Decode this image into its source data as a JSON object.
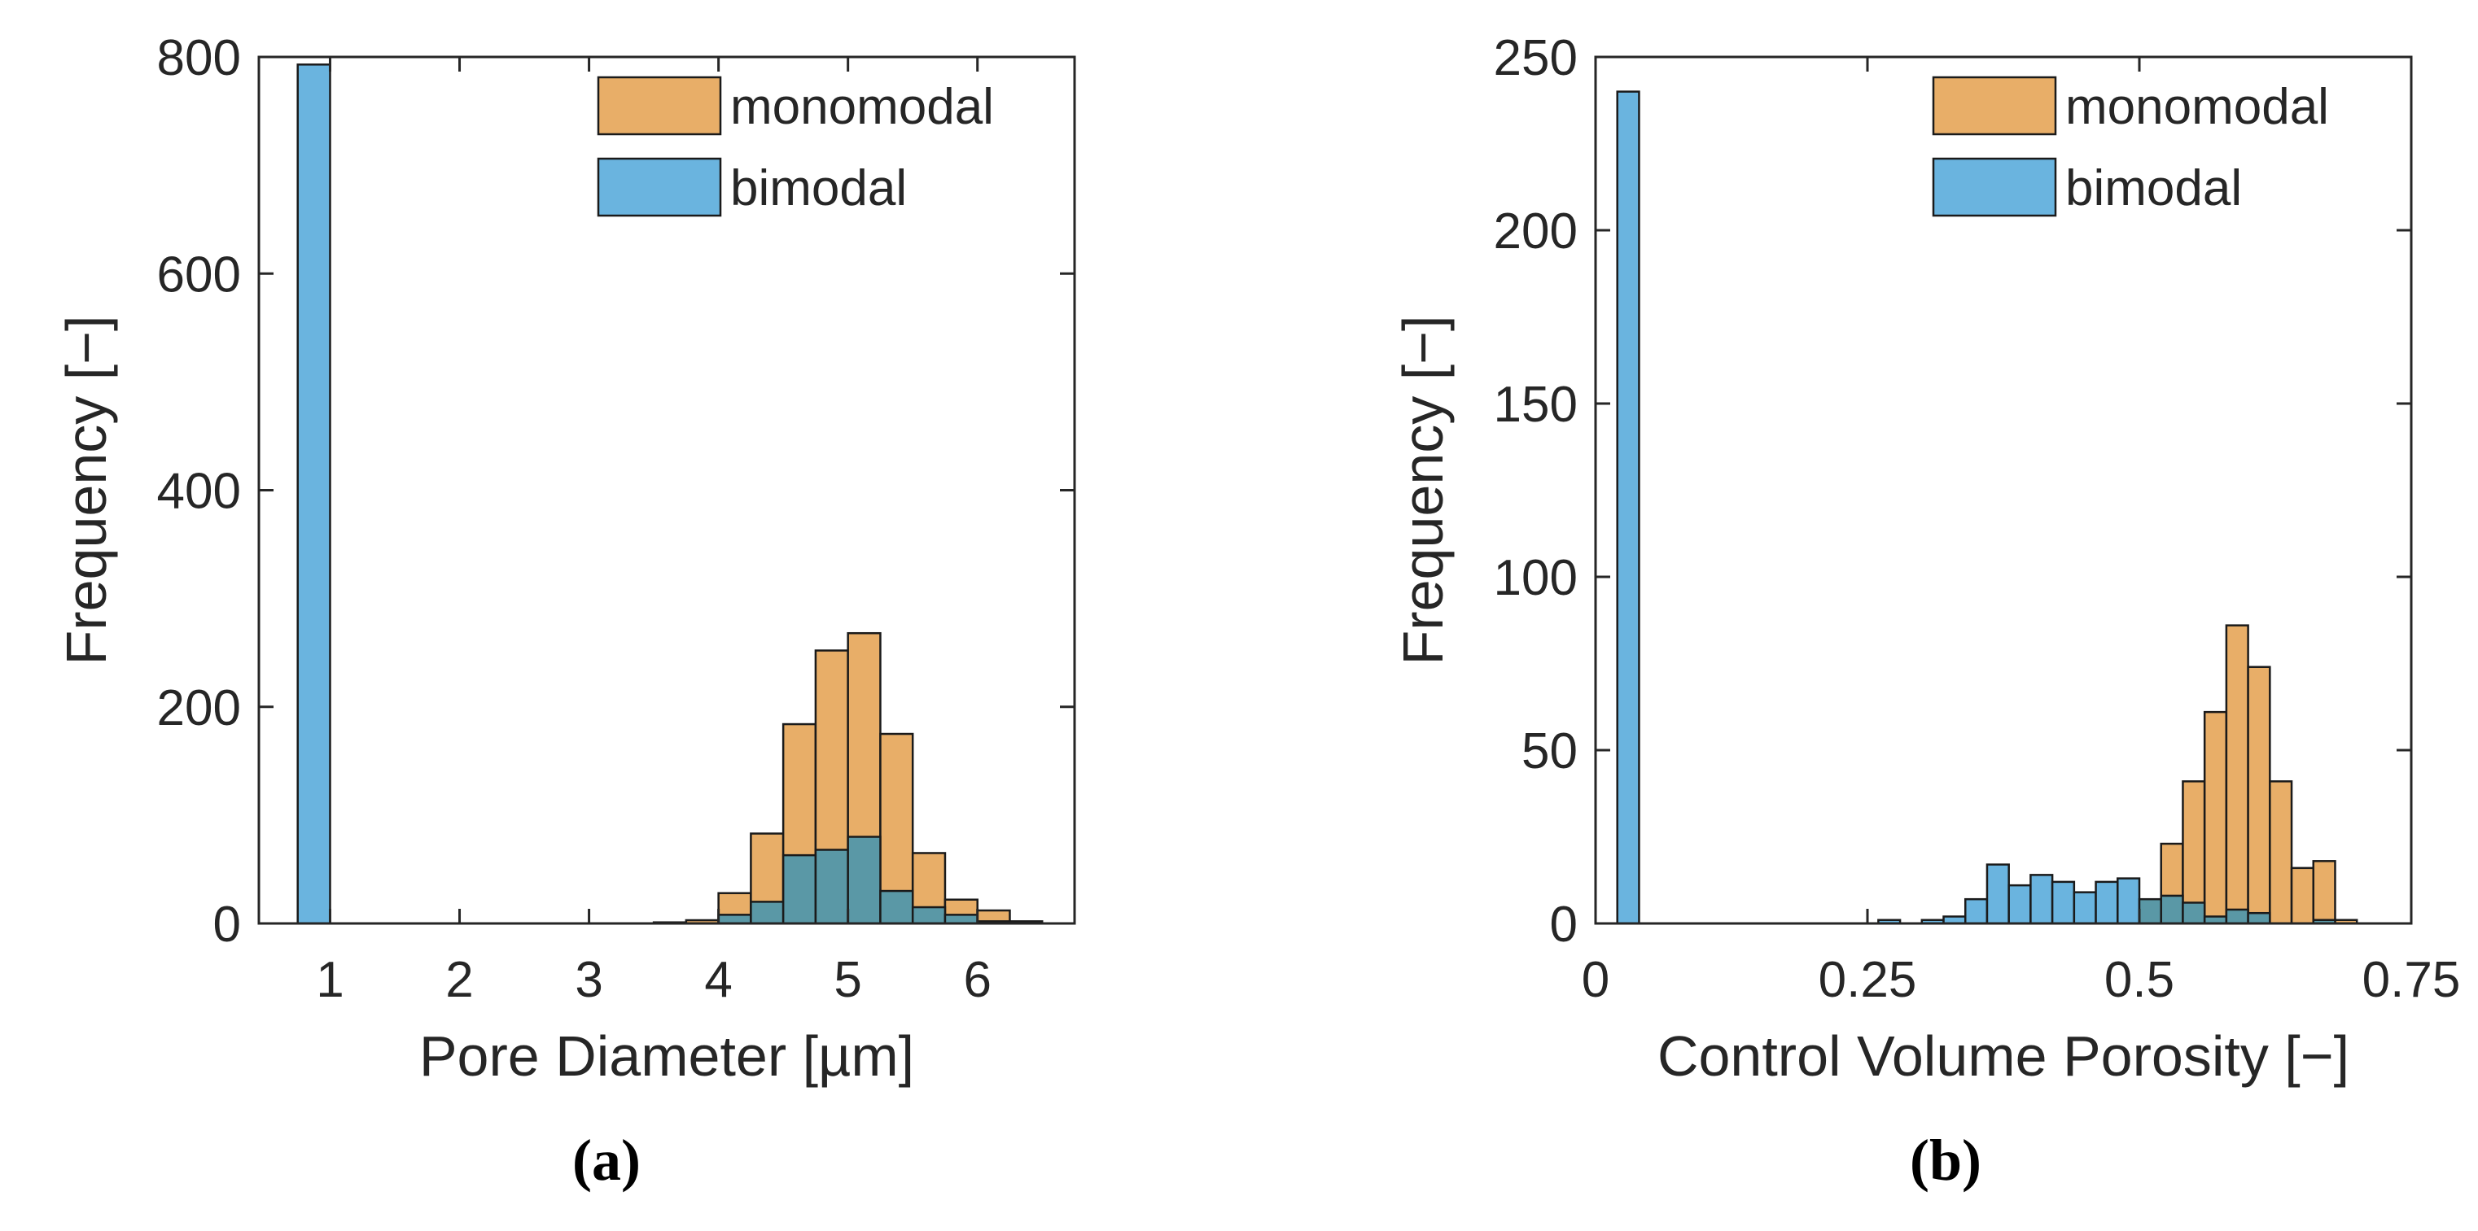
{
  "colors": {
    "monomodal": "#E8AE68",
    "bimodal": "#6AB4DF",
    "overlap": "#5A98A6",
    "axis": "#262626",
    "edge": "#1a1a1a"
  },
  "chart_data": [
    {
      "type": "histogram",
      "panel_label": "(a)",
      "xlabel": "Pore Diameter [µm]",
      "ylabel": "Frequency [−]",
      "xlim": [
        0.45,
        6.75
      ],
      "ylim": [
        0,
        800
      ],
      "xticks": [
        1,
        2,
        3,
        4,
        5,
        6
      ],
      "xtick_labels": [
        "1",
        "2",
        "3",
        "4",
        "5",
        "6"
      ],
      "yticks": [
        0,
        200,
        400,
        600,
        800
      ],
      "ytick_labels": [
        "0",
        "200",
        "400",
        "600",
        "800"
      ],
      "legend": {
        "position": "top-right",
        "entries": [
          "monomodal",
          "bimodal"
        ]
      },
      "bin_edges": [
        0.75,
        1.0,
        1.25,
        1.5,
        1.75,
        2.0,
        2.25,
        2.5,
        2.75,
        3.0,
        3.25,
        3.5,
        3.75,
        4.0,
        4.25,
        4.5,
        4.75,
        5.0,
        5.25,
        5.5,
        5.75,
        6.0,
        6.25,
        6.5
      ],
      "series": [
        {
          "name": "monomodal",
          "values": [
            0,
            0,
            0,
            0,
            0,
            0,
            0,
            0,
            0,
            0,
            0,
            1,
            3,
            28,
            83,
            184,
            252,
            268,
            175,
            65,
            22,
            12,
            2
          ]
        },
        {
          "name": "bimodal",
          "values": [
            793,
            0,
            0,
            0,
            0,
            0,
            0,
            0,
            0,
            0,
            0,
            0,
            0,
            8,
            20,
            63,
            68,
            80,
            30,
            15,
            8,
            2,
            0
          ]
        }
      ]
    },
    {
      "type": "histogram",
      "panel_label": "(b)",
      "xlabel": "Control Volume Porosity [−]",
      "ylabel": "Frequency [−]",
      "xlim": [
        0,
        0.75
      ],
      "ylim": [
        0,
        250
      ],
      "xticks": [
        0,
        0.25,
        0.5,
        0.75
      ],
      "xtick_labels": [
        "0",
        "0.25",
        "0.5",
        "0.75"
      ],
      "yticks": [
        0,
        50,
        100,
        150,
        200,
        250
      ],
      "ytick_labels": [
        "0",
        "50",
        "100",
        "150",
        "200",
        "250"
      ],
      "legend": {
        "position": "top-right",
        "entries": [
          "monomodal",
          "bimodal"
        ]
      },
      "bin_edges": [
        0.02,
        0.04,
        0.06,
        0.08,
        0.1,
        0.12,
        0.14,
        0.16,
        0.18,
        0.2,
        0.22,
        0.24,
        0.26,
        0.28,
        0.3,
        0.32,
        0.34,
        0.36,
        0.38,
        0.4,
        0.42,
        0.44,
        0.46,
        0.48,
        0.5,
        0.52,
        0.54,
        0.56,
        0.58,
        0.6,
        0.62,
        0.64,
        0.66,
        0.68,
        0.7
      ],
      "series": [
        {
          "name": "monomodal",
          "values": [
            0,
            0,
            0,
            0,
            0,
            0,
            0,
            0,
            0,
            0,
            0,
            0,
            0,
            0,
            0,
            0,
            0,
            0,
            0,
            0,
            0,
            0,
            0,
            0,
            1,
            23,
            41,
            61,
            86,
            74,
            41,
            16,
            18,
            1
          ]
        },
        {
          "name": "bimodal",
          "values": [
            240,
            0,
            0,
            0,
            0,
            0,
            0,
            0,
            0,
            0,
            0,
            0,
            1,
            0,
            1,
            2,
            7,
            17,
            11,
            14,
            12,
            9,
            12,
            13,
            7,
            8,
            6,
            2,
            4,
            3,
            0,
            0,
            1,
            0
          ]
        }
      ]
    }
  ]
}
